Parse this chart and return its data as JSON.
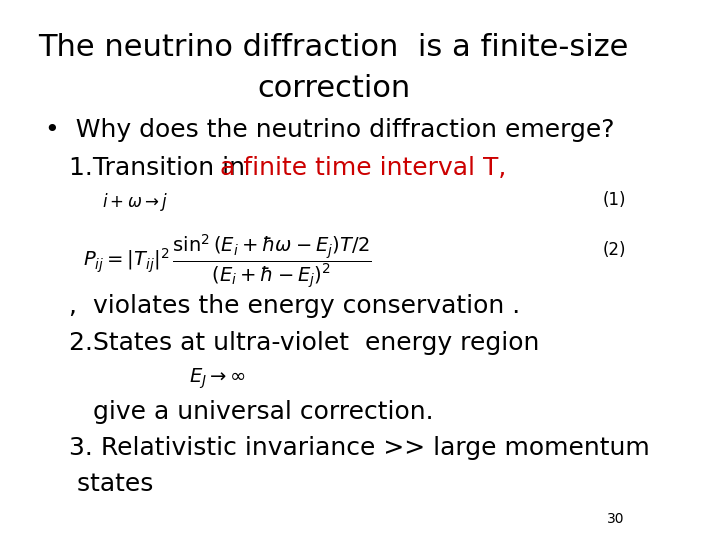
{
  "title_line1": "The neutrino diffraction  is a finite-size",
  "title_line2": "correction",
  "title_fontsize": 22,
  "title_color": "#000000",
  "background_color": "#ffffff",
  "page_number": "30",
  "bullet_text": "•  Why does the neutrino diffraction emerge?",
  "line1_black": "   1.Transition in ",
  "line1_red": "a finite time interval T,",
  "eq1_label": "(1)",
  "eq2_label": "(2)",
  "comma_text": "   ,  violates the energy conservation .",
  "line2_text": "   2.States at ultra-violet  energy region",
  "line3_text": "      give a universal correction.",
  "line4_text": "   3. Relativistic invariance >> large momentum",
  "line5_text": "    states",
  "text_fontsize": 18,
  "eq_fontsize": 14,
  "small_eq_fontsize": 12
}
